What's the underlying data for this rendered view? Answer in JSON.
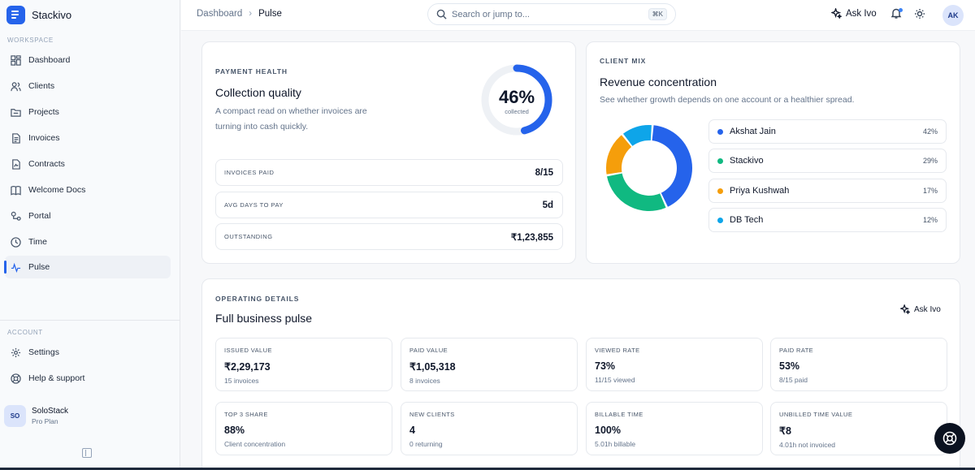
{
  "brand": {
    "name": "Stackivo"
  },
  "sidebar": {
    "workspace_label": "WORKSPACE",
    "items": [
      {
        "label": "Dashboard",
        "icon": "grid-icon"
      },
      {
        "label": "Clients",
        "icon": "users-icon"
      },
      {
        "label": "Projects",
        "icon": "folder-icon"
      },
      {
        "label": "Invoices",
        "icon": "file-text-icon"
      },
      {
        "label": "Contracts",
        "icon": "contract-icon"
      },
      {
        "label": "Welcome Docs",
        "icon": "book-icon"
      },
      {
        "label": "Portal",
        "icon": "portal-icon"
      },
      {
        "label": "Time",
        "icon": "clock-icon"
      },
      {
        "label": "Pulse",
        "icon": "activity-icon"
      }
    ],
    "active": "Pulse",
    "account_label": "ACCOUNT",
    "account_items": [
      {
        "label": "Settings",
        "icon": "gear-icon"
      },
      {
        "label": "Help & support",
        "icon": "lifebuoy-icon"
      }
    ],
    "user": {
      "initials": "SO",
      "name": "SoloStack",
      "plan": "Pro Plan"
    }
  },
  "topbar": {
    "breadcrumb": [
      "Dashboard",
      "Pulse"
    ],
    "search_placeholder": "Search or jump to...",
    "search_shortcut": "⌘K",
    "ask_ivo": "Ask Ivo",
    "avatar_initials": "AK"
  },
  "payment_health": {
    "eyebrow": "PAYMENT HEALTH",
    "title": "Collection quality",
    "subtitle_line1": "A compact read on whether invoices are",
    "subtitle_line2": "turning into cash quickly.",
    "gauge_value": "46%",
    "gauge_caption": "collected",
    "gauge_fraction": 0.46,
    "rows": [
      {
        "label": "INVOICES PAID",
        "value": "8/15"
      },
      {
        "label": "AVG DAYS TO PAY",
        "value": "5d"
      },
      {
        "label": "OUTSTANDING",
        "value": "₹1,23,855"
      }
    ]
  },
  "client_mix": {
    "eyebrow": "CLIENT MIX",
    "title": "Revenue concentration",
    "subtitle": "See whether growth depends on one account or a healthier spread.",
    "clients": [
      {
        "name": "Akshat Jain",
        "pct": "42%",
        "value": 42,
        "color": "#2563eb"
      },
      {
        "name": "Stackivo",
        "pct": "29%",
        "value": 29,
        "color": "#10b981"
      },
      {
        "name": "Priya Kushwah",
        "pct": "17%",
        "value": 17,
        "color": "#f59e0b"
      },
      {
        "name": "DB Tech",
        "pct": "12%",
        "value": 12,
        "color": "#0ea5e9"
      }
    ]
  },
  "operating": {
    "eyebrow": "OPERATING DETAILS",
    "title": "Full business pulse",
    "ask_ivo": "Ask Ivo",
    "metrics": [
      {
        "label": "ISSUED VALUE",
        "value": "₹2,29,173",
        "note": "15 invoices"
      },
      {
        "label": "PAID VALUE",
        "value": "₹1,05,318",
        "note": "8 invoices"
      },
      {
        "label": "VIEWED RATE",
        "value": "73%",
        "note": "11/15 viewed"
      },
      {
        "label": "PAID RATE",
        "value": "53%",
        "note": "8/15 paid"
      },
      {
        "label": "TOP 3 SHARE",
        "value": "88%",
        "note": "Client concentration"
      },
      {
        "label": "NEW CLIENTS",
        "value": "4",
        "note": "0 returning"
      },
      {
        "label": "BILLABLE TIME",
        "value": "100%",
        "note": "5.01h billable"
      },
      {
        "label": "UNBILLED TIME VALUE",
        "value": "₹8",
        "note": "4.01h not invoiced"
      }
    ]
  },
  "colors": {
    "accent": "#2563eb",
    "gauge_track": "#eef1f5"
  }
}
